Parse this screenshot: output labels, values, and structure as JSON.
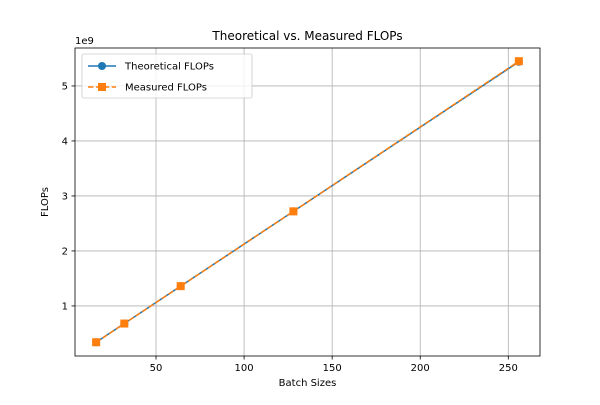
{
  "chart_data": {
    "type": "line",
    "title": "Theoretical vs. Measured FLOPs",
    "xlabel": "Batch Sizes",
    "ylabel": "FLOPs",
    "y_offset_label": "1e9",
    "x": [
      16,
      32,
      64,
      128,
      256
    ],
    "series": [
      {
        "name": "Theoretical FLOPs",
        "values": [
          0.34,
          0.68,
          1.36,
          2.72,
          5.44
        ],
        "color": "#1f77b4",
        "marker": "circle",
        "linestyle": "solid"
      },
      {
        "name": "Measured FLOPs",
        "values": [
          0.34,
          0.68,
          1.36,
          2.72,
          5.45
        ],
        "color": "#ff7f0e",
        "marker": "square",
        "linestyle": "dashed"
      }
    ],
    "xlim": [
      4,
      268
    ],
    "ylim": [
      0.09,
      5.69
    ],
    "xticks": [
      50,
      100,
      150,
      200,
      250
    ],
    "xtick_labels": [
      "50",
      "100",
      "150",
      "200",
      "250"
    ],
    "yticks": [
      1,
      2,
      3,
      4,
      5
    ],
    "ytick_labels": [
      "1",
      "2",
      "3",
      "4",
      "5"
    ],
    "grid": true,
    "legend_position": "top-left"
  }
}
